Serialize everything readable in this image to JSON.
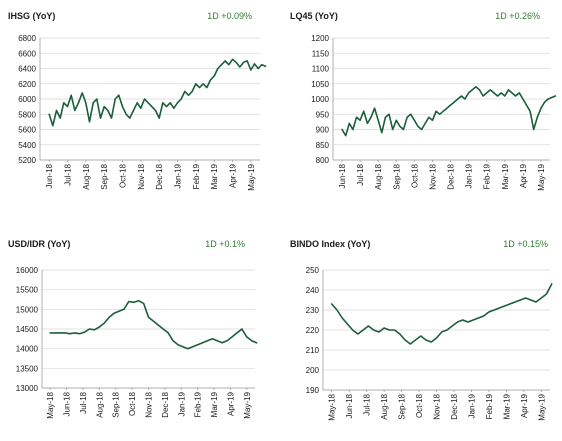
{
  "chart_data": [
    {
      "type": "line",
      "title": "IHSG (YoY)",
      "change": "1D +0.09%",
      "ylim": [
        5200,
        6800
      ],
      "yticks": [
        5200,
        5400,
        5600,
        5800,
        6000,
        6200,
        6400,
        6600,
        6800
      ],
      "xticks": [
        "Jun-18",
        "Jul-18",
        "Aug-18",
        "Sep-18",
        "Oct-18",
        "Nov-18",
        "Dec-18",
        "Jan-19",
        "Feb-19",
        "Mar-19",
        "Apr-19",
        "May-19"
      ],
      "grid": true,
      "series": [
        {
          "x": [
            0,
            0.2,
            0.4,
            0.6,
            0.8,
            1.0,
            1.2,
            1.4,
            1.6,
            1.8,
            2.0,
            2.2,
            2.4,
            2.6,
            2.8,
            3.0,
            3.2,
            3.4,
            3.6,
            3.8,
            4.0,
            4.2,
            4.4,
            4.6,
            4.8,
            5.0,
            5.2,
            5.4,
            5.6,
            5.8,
            6.0,
            6.2,
            6.4,
            6.6,
            6.8,
            7.0,
            7.2,
            7.4,
            7.6,
            7.8,
            8.0,
            8.2,
            8.4,
            8.6,
            8.8,
            9.0,
            9.2,
            9.4,
            9.6,
            9.8,
            10.0,
            10.2,
            10.4,
            10.6,
            10.8,
            11.0,
            11.2,
            11.4,
            11.6,
            11.8
          ],
          "values": [
            5800,
            5650,
            5850,
            5750,
            5950,
            5900,
            6050,
            5850,
            5950,
            6080,
            5950,
            5700,
            5950,
            6000,
            5750,
            5900,
            5850,
            5750,
            6000,
            6050,
            5900,
            5800,
            5750,
            5850,
            5950,
            5880,
            6000,
            5950,
            5900,
            5850,
            5750,
            5950,
            5900,
            5950,
            5880,
            5950,
            6000,
            6100,
            6050,
            6100,
            6200,
            6150,
            6200,
            6150,
            6250,
            6300,
            6400,
            6450,
            6500,
            6450,
            6520,
            6480,
            6420,
            6480,
            6500,
            6380,
            6460,
            6400,
            6450,
            6430
          ]
        }
      ]
    },
    {
      "type": "line",
      "title": "LQ45 (YoY)",
      "change": "1D +0.26%",
      "ylim": [
        800,
        1200
      ],
      "yticks": [
        800,
        850,
        900,
        950,
        1000,
        1050,
        1100,
        1150,
        1200
      ],
      "xticks": [
        "Jun-18",
        "Jul-18",
        "Aug-18",
        "Sep-18",
        "Oct-18",
        "Nov-18",
        "Dec-18",
        "Jan-19",
        "Feb-19",
        "Mar-19",
        "Apr-19",
        "May-19"
      ],
      "grid": true,
      "series": [
        {
          "x": [
            0,
            0.2,
            0.4,
            0.6,
            0.8,
            1.0,
            1.2,
            1.4,
            1.6,
            1.8,
            2.0,
            2.2,
            2.4,
            2.6,
            2.8,
            3.0,
            3.2,
            3.4,
            3.6,
            3.8,
            4.0,
            4.2,
            4.4,
            4.6,
            4.8,
            5.0,
            5.2,
            5.4,
            5.6,
            5.8,
            6.0,
            6.2,
            6.4,
            6.6,
            6.8,
            7.0,
            7.2,
            7.4,
            7.6,
            7.8,
            8.0,
            8.2,
            8.4,
            8.6,
            8.8,
            9.0,
            9.2,
            9.4,
            9.6,
            9.8,
            10.0,
            10.2,
            10.4,
            10.6,
            10.8,
            11.0,
            11.2,
            11.4,
            11.6,
            11.8
          ],
          "values": [
            900,
            880,
            920,
            900,
            940,
            930,
            960,
            920,
            940,
            970,
            930,
            890,
            940,
            950,
            900,
            930,
            910,
            900,
            940,
            950,
            930,
            910,
            900,
            920,
            940,
            930,
            960,
            950,
            960,
            970,
            980,
            990,
            1000,
            1010,
            1000,
            1020,
            1030,
            1040,
            1030,
            1010,
            1020,
            1030,
            1020,
            1010,
            1020,
            1010,
            1030,
            1020,
            1010,
            1020,
            1000,
            980,
            960,
            900,
            940,
            970,
            990,
            1000,
            1005,
            1010
          ]
        }
      ]
    },
    {
      "type": "line",
      "title": "USD/IDR  (YoY)",
      "change": "1D +0.1%",
      "ylim": [
        13000,
        16000
      ],
      "yticks": [
        13000,
        13500,
        14000,
        14500,
        15000,
        15500,
        16000
      ],
      "xticks": [
        "May-18",
        "Jun-18",
        "Jul-18",
        "Aug-18",
        "Sep-18",
        "Oct-18",
        "Nov-18",
        "Dec-18",
        "Jan-19",
        "Feb-19",
        "Mar-19",
        "Apr-19",
        "May-19"
      ],
      "grid": true,
      "series": [
        {
          "x": [
            0,
            0.3,
            0.6,
            0.9,
            1.2,
            1.5,
            1.8,
            2.1,
            2.4,
            2.7,
            3.0,
            3.3,
            3.6,
            3.9,
            4.2,
            4.5,
            4.8,
            5.1,
            5.4,
            5.7,
            6.0,
            6.3,
            6.6,
            6.9,
            7.2,
            7.5,
            7.8,
            8.1,
            8.4,
            8.7,
            9.0,
            9.3,
            9.6,
            9.9,
            10.2,
            10.5,
            10.8,
            11.1,
            11.4,
            11.7,
            12.0,
            12.3,
            12.6
          ],
          "values": [
            14400,
            14400,
            14400,
            14400,
            14380,
            14400,
            14380,
            14420,
            14500,
            14480,
            14550,
            14650,
            14800,
            14900,
            14950,
            15000,
            15200,
            15180,
            15220,
            15150,
            14800,
            14700,
            14600,
            14500,
            14400,
            14200,
            14100,
            14050,
            14000,
            14050,
            14100,
            14150,
            14200,
            14250,
            14200,
            14150,
            14200,
            14300,
            14400,
            14500,
            14300,
            14200,
            14150
          ]
        }
      ]
    },
    {
      "type": "line",
      "title": "BINDO Index (YoY)",
      "change": "1D +0.15%",
      "ylim": [
        190,
        250
      ],
      "yticks": [
        190,
        200,
        210,
        220,
        230,
        240,
        250
      ],
      "xticks": [
        "May-18",
        "Jun-18",
        "Jul-18",
        "Aug-18",
        "Sep-18",
        "Oct-18",
        "Nov-18",
        "Dec-18",
        "Jan-19",
        "Feb-19",
        "Mar-19",
        "Apr-19",
        "May-19"
      ],
      "grid": true,
      "series": [
        {
          "x": [
            0,
            0.3,
            0.6,
            0.9,
            1.2,
            1.5,
            1.8,
            2.1,
            2.4,
            2.7,
            3.0,
            3.3,
            3.6,
            3.9,
            4.2,
            4.5,
            4.8,
            5.1,
            5.4,
            5.7,
            6.0,
            6.3,
            6.6,
            6.9,
            7.2,
            7.5,
            7.8,
            8.1,
            8.4,
            8.7,
            9.0,
            9.3,
            9.6,
            9.9,
            10.2,
            10.5,
            10.8,
            11.1,
            11.4,
            11.7,
            12.0,
            12.3,
            12.6
          ],
          "values": [
            233,
            230,
            226,
            223,
            220,
            218,
            220,
            222,
            220,
            219,
            221,
            220,
            220,
            218,
            215,
            213,
            215,
            217,
            215,
            214,
            216,
            219,
            220,
            222,
            224,
            225,
            224,
            225,
            226,
            227,
            229,
            230,
            231,
            232,
            233,
            234,
            235,
            236,
            235,
            234,
            236,
            238,
            243
          ]
        }
      ]
    }
  ]
}
